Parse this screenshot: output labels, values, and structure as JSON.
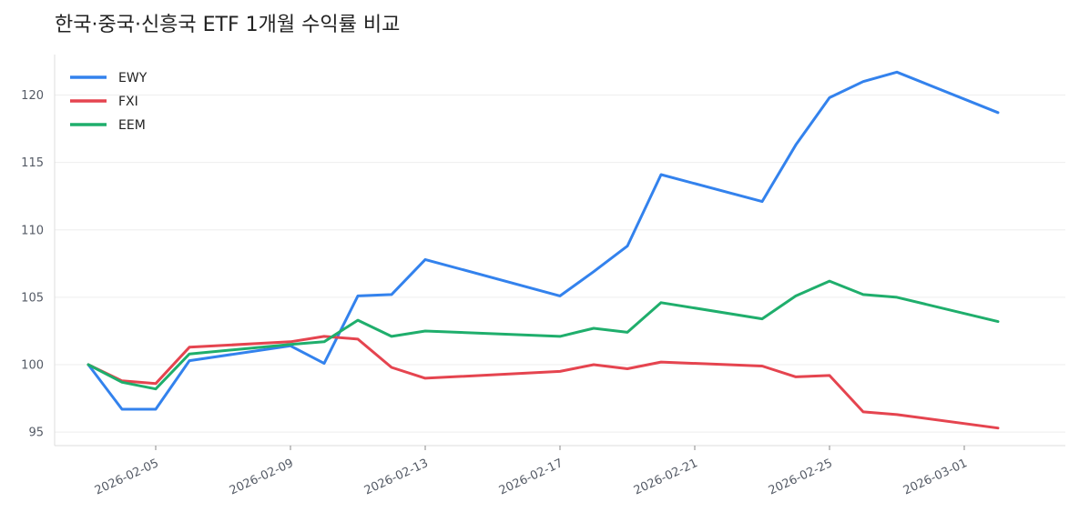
{
  "chart_data": {
    "type": "line",
    "title": "한국·중국·신흥국 ETF 1개월 수익률 비교",
    "xlabel": "",
    "ylabel": "",
    "ylim": [
      94,
      123
    ],
    "yticks": [
      95,
      100,
      105,
      110,
      115,
      120
    ],
    "x_range": [
      "2026-02-02",
      "2026-03-04"
    ],
    "x_ticks": [
      "2026-02-05",
      "2026-02-09",
      "2026-02-13",
      "2026-02-17",
      "2026-02-21",
      "2026-02-25",
      "2026-03-01"
    ],
    "x": [
      "2026-02-03",
      "2026-02-04",
      "2026-02-05",
      "2026-02-06",
      "2026-02-09",
      "2026-02-10",
      "2026-02-11",
      "2026-02-12",
      "2026-02-13",
      "2026-02-17",
      "2026-02-18",
      "2026-02-19",
      "2026-02-20",
      "2026-02-23",
      "2026-02-24",
      "2026-02-25",
      "2026-02-26",
      "2026-02-27",
      "2026-03-02"
    ],
    "series": [
      {
        "name": "EWY",
        "color": "#3382ed",
        "values": [
          100.0,
          96.7,
          96.7,
          100.3,
          101.4,
          100.1,
          105.1,
          105.2,
          107.8,
          105.1,
          106.9,
          108.8,
          114.1,
          112.1,
          116.3,
          119.8,
          121.0,
          121.7,
          118.7
        ]
      },
      {
        "name": "FXI",
        "color": "#e5444f",
        "values": [
          100.0,
          98.8,
          98.6,
          101.3,
          101.7,
          102.1,
          101.9,
          99.8,
          99.0,
          99.5,
          100.0,
          99.7,
          100.2,
          99.9,
          99.1,
          99.2,
          96.5,
          96.3,
          95.3
        ]
      },
      {
        "name": "EEM",
        "color": "#1fae6c",
        "values": [
          100.0,
          98.7,
          98.2,
          100.8,
          101.5,
          101.7,
          103.3,
          102.1,
          102.5,
          102.1,
          102.7,
          102.4,
          104.6,
          103.4,
          105.1,
          106.2,
          105.2,
          105.0,
          103.2
        ]
      }
    ],
    "grid": "horizontal",
    "legend_position": "top-left"
  }
}
